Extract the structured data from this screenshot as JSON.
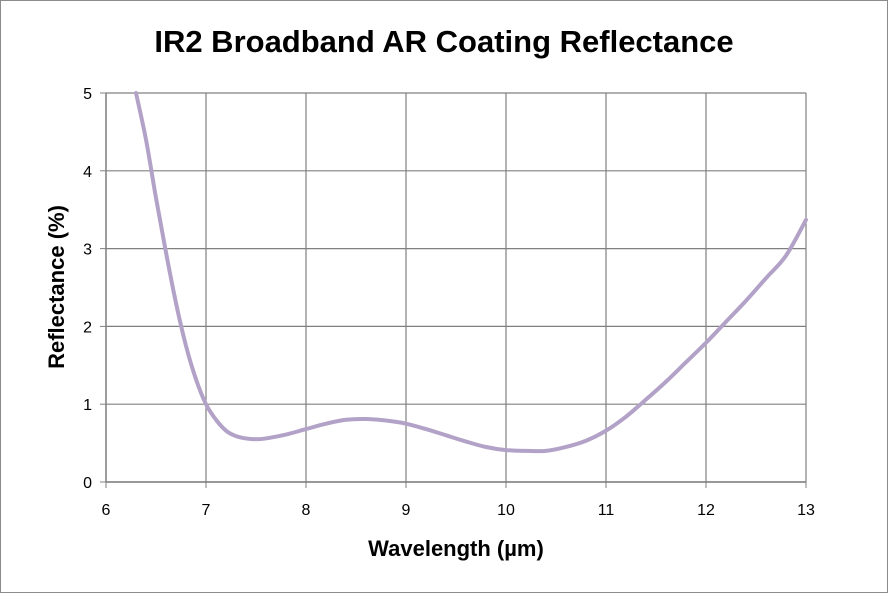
{
  "chart_data": {
    "type": "line",
    "title": "IR2 Broadband AR Coating Reflectance",
    "xlabel": "Wavelength (µm)",
    "ylabel": "Reflectance (%)",
    "xlim": [
      6,
      13
    ],
    "ylim": [
      0,
      5
    ],
    "x_ticks": [
      "6",
      "7",
      "8",
      "9",
      "10",
      "11",
      "12",
      "13"
    ],
    "y_ticks": [
      "0",
      "1",
      "2",
      "3",
      "4",
      "5"
    ],
    "grid": true,
    "legend": "none",
    "colors": {
      "line": "#b3a2c7",
      "grid": "#808080",
      "axis": "#808080"
    },
    "series": [
      {
        "x": [
          6.3,
          6.4,
          6.5,
          6.6,
          6.7,
          6.8,
          6.9,
          7.0,
          7.1,
          7.2,
          7.3,
          7.4,
          7.5,
          7.6,
          7.8,
          8.0,
          8.2,
          8.4,
          8.6,
          8.8,
          9.0,
          9.2,
          9.4,
          9.6,
          9.8,
          10.0,
          10.2,
          10.4,
          10.6,
          10.8,
          11.0,
          11.2,
          11.4,
          11.6,
          11.8,
          12.0,
          12.2,
          12.4,
          12.6,
          12.8,
          13.0
        ],
        "y": [
          5.0,
          4.4,
          3.65,
          2.95,
          2.3,
          1.75,
          1.32,
          1.0,
          0.8,
          0.66,
          0.59,
          0.56,
          0.55,
          0.56,
          0.61,
          0.68,
          0.75,
          0.8,
          0.81,
          0.79,
          0.75,
          0.68,
          0.6,
          0.52,
          0.45,
          0.41,
          0.4,
          0.4,
          0.45,
          0.53,
          0.66,
          0.84,
          1.06,
          1.29,
          1.54,
          1.79,
          2.06,
          2.33,
          2.62,
          2.91,
          3.37
        ]
      }
    ]
  }
}
